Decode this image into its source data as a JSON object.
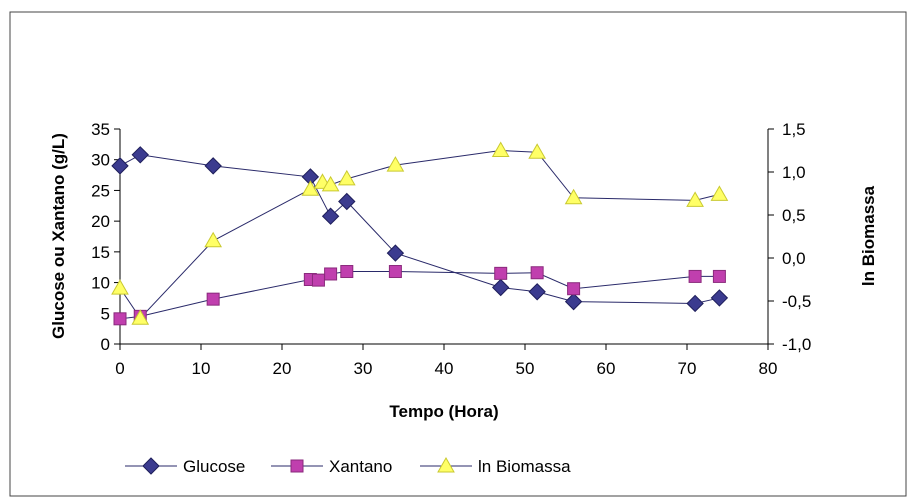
{
  "chart_data": {
    "type": "line",
    "xlabel": "Tempo (Hora)",
    "ylabel": "Glucose ou Xantano (g/L)",
    "y2label": "ln Biomassa",
    "xlim": [
      0,
      80
    ],
    "ylim": [
      0,
      35
    ],
    "y2lim": [
      -1.0,
      1.5
    ],
    "x_ticks": [
      "0",
      "10",
      "20",
      "30",
      "40",
      "50",
      "60",
      "70",
      "80"
    ],
    "y_ticks": [
      "0",
      "5",
      "10",
      "15",
      "20",
      "25",
      "30",
      "35"
    ],
    "y2_ticks": [
      "-1,0",
      "-0,5",
      "0,0",
      "0,5",
      "1,0",
      "1,5"
    ],
    "grid": false,
    "legend_position": "bottom",
    "series": [
      {
        "name": "Glucose",
        "axis": "left",
        "marker": "diamond",
        "color": "#3b3b8f",
        "points": [
          [
            0,
            29
          ],
          [
            2.5,
            30.8
          ],
          [
            11.5,
            29
          ],
          [
            23.5,
            27.2
          ],
          [
            26,
            20.8
          ],
          [
            28,
            23.2
          ],
          [
            34,
            14.8
          ],
          [
            47,
            9.2
          ],
          [
            51.5,
            8.5
          ],
          [
            56,
            6.9
          ],
          [
            71,
            6.6
          ],
          [
            74,
            7.5
          ]
        ]
      },
      {
        "name": "Xantano",
        "axis": "left",
        "marker": "square",
        "color": "#c03fae",
        "points": [
          [
            0,
            4.1
          ],
          [
            2.5,
            4.5
          ],
          [
            11.5,
            7.3
          ],
          [
            23.5,
            10.5
          ],
          [
            24.5,
            10.4
          ],
          [
            26,
            11.4
          ],
          [
            28,
            11.8
          ],
          [
            34,
            11.8
          ],
          [
            47,
            11.5
          ],
          [
            51.5,
            11.6
          ],
          [
            56,
            9.0
          ],
          [
            71,
            11.0
          ],
          [
            74,
            11.0
          ]
        ]
      },
      {
        "name": "ln Biomassa",
        "axis": "right",
        "marker": "triangle",
        "color": "#ffff66",
        "points": [
          [
            0,
            -0.35
          ],
          [
            2.5,
            -0.7
          ],
          [
            11.5,
            0.2
          ],
          [
            23.5,
            0.8
          ],
          [
            25,
            0.88
          ],
          [
            26,
            0.85
          ],
          [
            28,
            0.92
          ],
          [
            34,
            1.08
          ],
          [
            47,
            1.25
          ],
          [
            51.5,
            1.23
          ],
          [
            56,
            0.7
          ],
          [
            71,
            0.67
          ],
          [
            74,
            0.74
          ]
        ]
      }
    ]
  }
}
